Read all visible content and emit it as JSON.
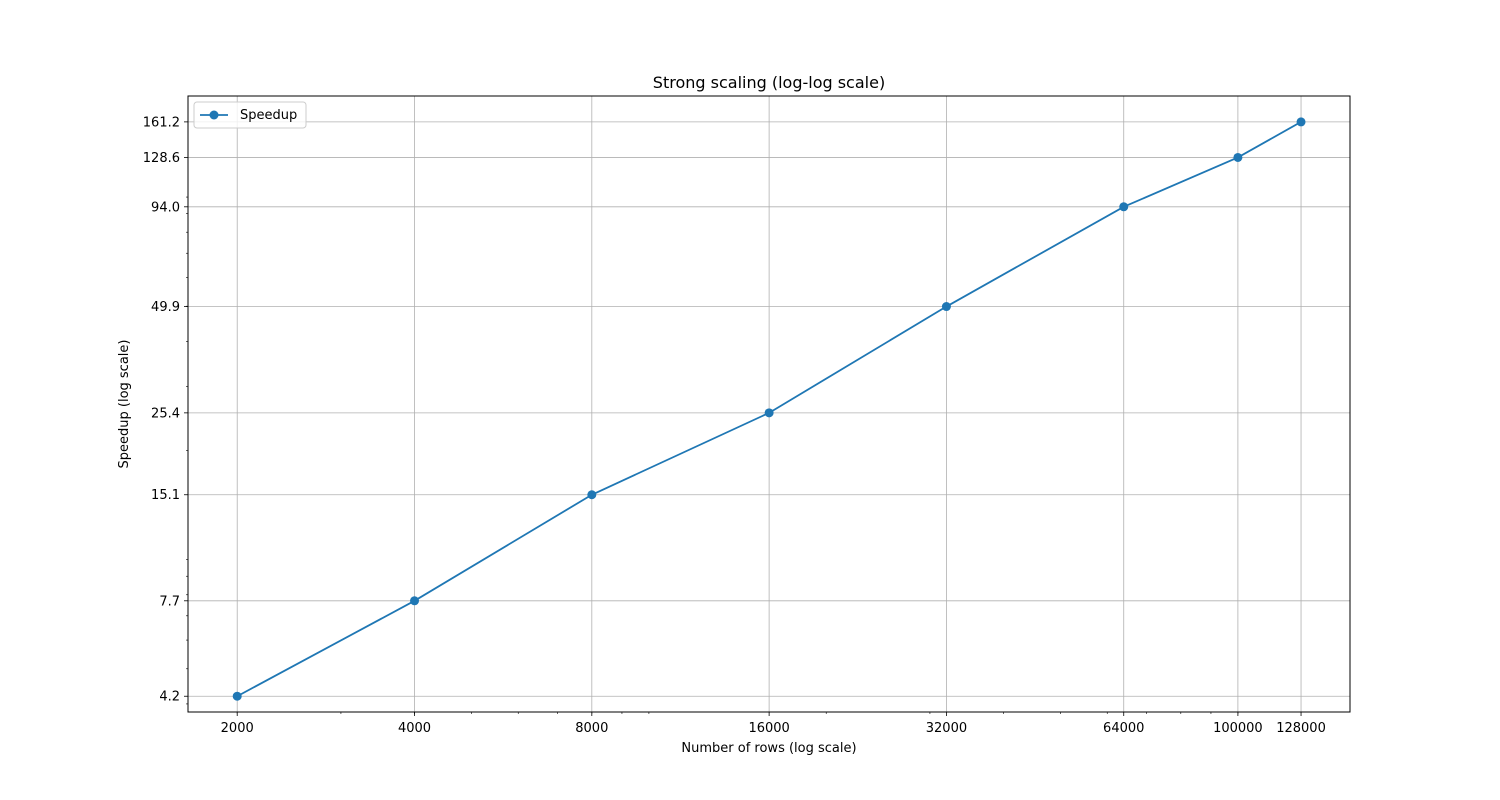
{
  "chart_data": {
    "type": "line",
    "title": "Strong scaling (log-log scale)",
    "xlabel": "Number of rows (log scale)",
    "ylabel": "Speedup (log scale)",
    "xscale": "log",
    "yscale": "log",
    "grid": true,
    "legend_position": "top-left",
    "xlim": [
      1650,
      155000
    ],
    "ylim": [
      3.8,
      190
    ],
    "x_ticks": [
      2000,
      4000,
      8000,
      16000,
      32000,
      64000,
      100000,
      128000
    ],
    "x_tick_labels": [
      "2000",
      "4000",
      "8000",
      "16000",
      "32000",
      "64000",
      "100000",
      "128000"
    ],
    "y_ticks": [
      4.2,
      7.7,
      15.1,
      25.4,
      49.9,
      94.0,
      128.6,
      161.2
    ],
    "y_tick_labels": [
      "4.2",
      "7.7",
      "15.1",
      "25.4",
      "49.9",
      "94.0",
      "128.6",
      "161.2"
    ],
    "x": [
      2000,
      4000,
      8000,
      16000,
      32000,
      64000,
      100000,
      128000
    ],
    "series": [
      {
        "name": "Speedup",
        "color": "#1f77b4",
        "marker": "circle",
        "values": [
          4.2,
          7.7,
          15.1,
          25.4,
          49.9,
          94.0,
          128.6,
          161.2
        ]
      }
    ]
  }
}
